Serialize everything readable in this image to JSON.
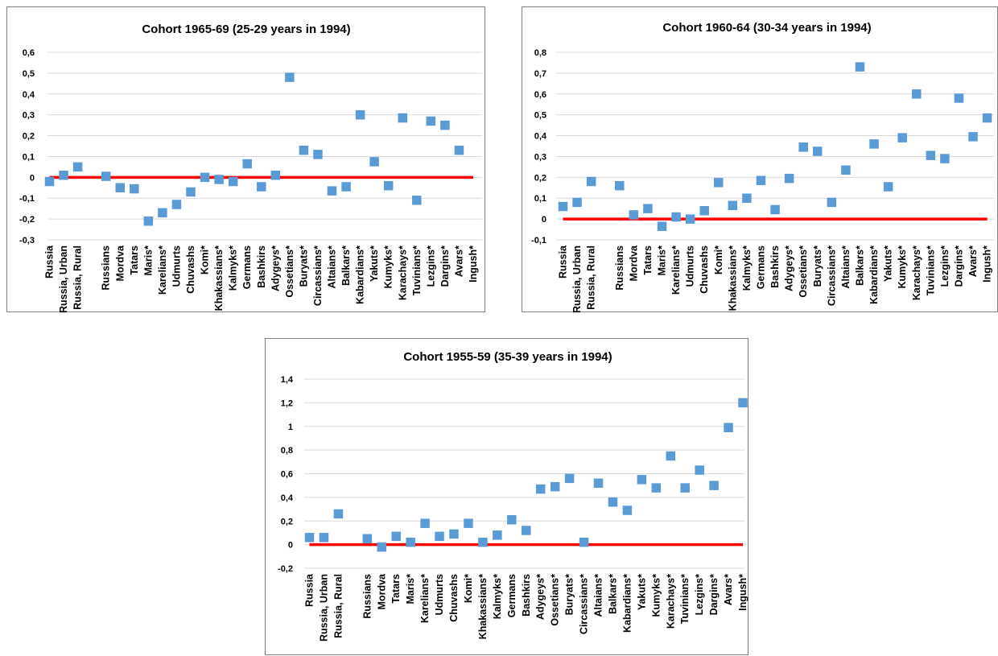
{
  "chart_data": [
    {
      "type": "scatter",
      "title": "Cohort 1965-69 (25-29 years in 1994)",
      "xlabel": "",
      "ylabel": "",
      "ylim": [
        -0.3,
        0.6
      ],
      "yticks": [
        "-0,3",
        "-0,2",
        "-0,1",
        "0",
        "0,1",
        "0,2",
        "0,3",
        "0,4",
        "0,5",
        "0,6"
      ],
      "grid": true,
      "reference_line": 0,
      "colors": {
        "marker": "#5b9bd5",
        "line": "#ff0000",
        "grid": "#d9d9d9"
      },
      "categories": [
        "Russia",
        "Russia, Urban",
        "Russia, Rural",
        "",
        "Russians",
        "Mordva",
        "Tatars",
        "Maris*",
        "Karelians*",
        "Udmurts",
        "Chuvashs",
        "Komi*",
        "Khakassians*",
        "Kalmyks*",
        "Germans",
        "Bashkirs",
        "Adygeys*",
        "Ossetians*",
        "Buryats*",
        "Circassians*",
        "Altaians*",
        "Balkars*",
        "Kabardians*",
        "Yakuts*",
        "Kumyks*",
        "Karachays*",
        "Tuvinians*",
        "Lezgins*",
        "Dargins*",
        "Avars*",
        "Ingush*"
      ],
      "values": [
        -0.02,
        0.01,
        0.05,
        null,
        0.005,
        -0.05,
        -0.055,
        -0.21,
        -0.17,
        -0.13,
        -0.07,
        0.0,
        -0.01,
        -0.02,
        0.065,
        -0.045,
        0.01,
        0.48,
        0.13,
        0.11,
        -0.065,
        -0.045,
        0.3,
        0.075,
        -0.04,
        0.285,
        -0.11,
        0.27,
        0.25,
        0.13,
        null
      ]
    },
    {
      "type": "scatter",
      "title": "Cohort 1960-64 (30-34 years in 1994)",
      "xlabel": "",
      "ylabel": "",
      "ylim": [
        -0.1,
        0.8
      ],
      "yticks": [
        "-0,1",
        "0",
        "0,1",
        "0,2",
        "0,3",
        "0,4",
        "0,5",
        "0,6",
        "0,7",
        "0,8"
      ],
      "grid": true,
      "reference_line": 0,
      "colors": {
        "marker": "#5b9bd5",
        "line": "#ff0000",
        "grid": "#d9d9d9"
      },
      "categories": [
        "Russia",
        "Russia, Urban",
        "Russia, Rural",
        "",
        "Russians",
        "Mordva",
        "Tatars",
        "Maris*",
        "Karelians*",
        "Udmurts",
        "Chuvashs",
        "Komi*",
        "Khakassians*",
        "Kalmyks*",
        "Germans",
        "Bashkirs",
        "Adygeys*",
        "Ossetians*",
        "Buryats*",
        "Circassians*",
        "Altaians*",
        "Balkars*",
        "Kabardians*",
        "Yakuts*",
        "Kumyks*",
        "Karachays*",
        "Tuvinians*",
        "Lezgins*",
        "Dargins*",
        "Avars*",
        "Ingush*"
      ],
      "values": [
        0.06,
        0.08,
        0.18,
        null,
        0.16,
        0.02,
        0.05,
        -0.035,
        0.01,
        0.0,
        0.04,
        0.175,
        0.065,
        0.1,
        0.185,
        0.045,
        0.195,
        0.345,
        0.325,
        0.08,
        0.235,
        0.73,
        0.36,
        0.155,
        0.39,
        0.6,
        0.305,
        0.29,
        0.58,
        0.395,
        0.485
      ]
    },
    {
      "type": "scatter",
      "title": "Cohort 1955-59 (35-39 years in 1994)",
      "xlabel": "",
      "ylabel": "",
      "ylim": [
        -0.2,
        1.4
      ],
      "yticks": [
        "-0,2",
        "0",
        "0,2",
        "0,4",
        "0,6",
        "0,8",
        "1",
        "1,2",
        "1,4"
      ],
      "grid": true,
      "reference_line": 0,
      "colors": {
        "marker": "#5b9bd5",
        "line": "#ff0000",
        "grid": "#d9d9d9"
      },
      "categories": [
        "Russia",
        "Russia, Urban",
        "Russia, Rural",
        "",
        "Russians",
        "Mordva",
        "Tatars",
        "Maris*",
        "Karelians*",
        "Udmurts",
        "Chuvashs",
        "Komi*",
        "Khakassians*",
        "Kalmyks*",
        "Germans",
        "Bashkirs",
        "Adygeys*",
        "Ossetians*",
        "Buryats*",
        "Circassians*",
        "Altaians*",
        "Balkars*",
        "Kabardians*",
        "Yakuts*",
        "Kumyks*",
        "Karachays*",
        "Tuvinians*",
        "Lezgins*",
        "Dargins*",
        "Avars*",
        "Ingush*"
      ],
      "values": [
        0.06,
        0.06,
        0.26,
        null,
        0.05,
        -0.02,
        0.07,
        0.02,
        0.18,
        0.07,
        0.09,
        0.18,
        0.02,
        0.08,
        0.21,
        0.12,
        0.47,
        0.49,
        0.56,
        0.02,
        0.52,
        0.36,
        0.29,
        0.55,
        0.48,
        0.75,
        0.48,
        0.63,
        0.5,
        0.99,
        1.2
      ]
    }
  ]
}
